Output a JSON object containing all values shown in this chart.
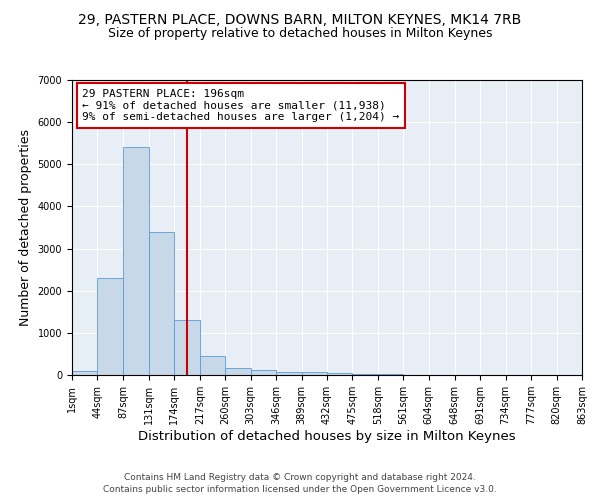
{
  "title_line1": "29, PASTERN PLACE, DOWNS BARN, MILTON KEYNES, MK14 7RB",
  "title_line2": "Size of property relative to detached houses in Milton Keynes",
  "xlabel": "Distribution of detached houses by size in Milton Keynes",
  "ylabel": "Number of detached properties",
  "footer_line1": "Contains HM Land Registry data © Crown copyright and database right 2024.",
  "footer_line2": "Contains public sector information licensed under the Open Government Licence v3.0.",
  "annotation_title": "29 PASTERN PLACE: 196sqm",
  "annotation_line1": "← 91% of detached houses are smaller (11,938)",
  "annotation_line2": "9% of semi-detached houses are larger (1,204) →",
  "property_size": 196,
  "bar_edges": [
    1,
    44,
    87,
    131,
    174,
    217,
    260,
    303,
    346,
    389,
    432,
    475,
    518,
    561,
    604,
    648,
    691,
    734,
    777,
    820,
    863
  ],
  "bar_heights": [
    100,
    2300,
    5400,
    3400,
    1300,
    450,
    175,
    125,
    75,
    75,
    50,
    30,
    15,
    10,
    5,
    3,
    2,
    1,
    1,
    1
  ],
  "bar_color": "#c7d9e8",
  "bar_edge_color": "#5b9bd5",
  "line_color": "#cc0000",
  "background_color": "#e8eef5",
  "ylim": [
    0,
    7000
  ],
  "annotation_box_color": "white",
  "annotation_box_edge": "#cc0000",
  "title_fontsize": 10,
  "subtitle_fontsize": 9,
  "axis_label_fontsize": 9,
  "tick_fontsize": 7,
  "footer_fontsize": 6.5,
  "annotation_fontsize": 8
}
